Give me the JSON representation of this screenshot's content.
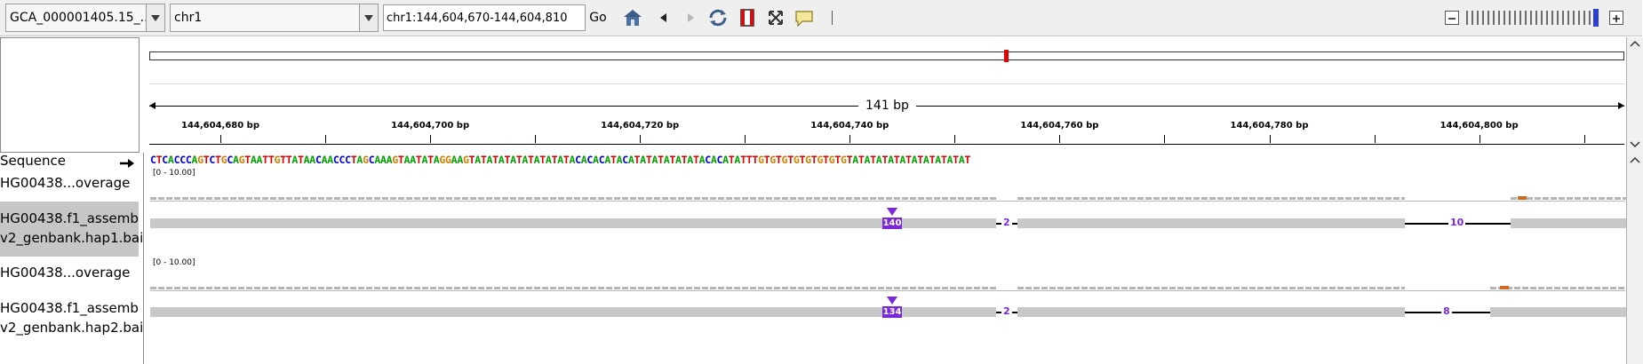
{
  "toolbar": {
    "genome_value": "GCA_000001405.15_...",
    "chromosome_value": "chr1",
    "locus_value": "chr1:144,604,670-144,604,810",
    "go_label": "Go"
  },
  "ruler": {
    "span_label": "141 bp",
    "tick_labels": [
      "144,604,680 bp",
      "144,604,700 bp",
      "144,604,720 bp",
      "144,604,740 bp",
      "144,604,760 bp",
      "144,604,780 bp",
      "144,604,800 bp"
    ]
  },
  "tracks": {
    "sequence_label": "Sequence",
    "sequence": "CTCACCCAGTCTGCAGTAATTGTTATAACAACCCTAGCAAAGTAATATAGGAAGTATATATATATATATATACACACATACATATATATATATACACATATTTGTGTGTGTGTGTGTGTATATATATATATATATATAT",
    "coverage1_label": "HG00438...overage",
    "coverage1_scale": "[0 - 10.00]",
    "alignment1_label_line1": "HG00438.f1_assemb",
    "alignment1_label_line2": "v2_genbank.hap1.bai",
    "alignment1_insertion": "140",
    "alignment1_small_deletion": "2",
    "alignment1_large_deletion": "10",
    "coverage2_label": "HG00438...overage",
    "coverage2_scale": "[0 - 10.00]",
    "alignment2_label_line1": "HG00438.f1_assemb",
    "alignment2_label_line2": "v2_genbank.hap2.bai",
    "alignment2_insertion": "134",
    "alignment2_small_deletion": "2",
    "alignment2_large_deletion": "8"
  },
  "colors": {
    "insertion": "#7a28d8",
    "base_A": "#00a000",
    "base_C": "#0000e0",
    "base_G": "#d18000",
    "base_T": "#e00000",
    "ideogram_marker": "#e00000"
  },
  "icons": [
    "home-icon",
    "back-icon",
    "forward-icon",
    "refresh-icon",
    "roi-icon",
    "resize-icon",
    "popup-text-icon",
    "zoom-out-icon",
    "zoom-in-icon"
  ]
}
